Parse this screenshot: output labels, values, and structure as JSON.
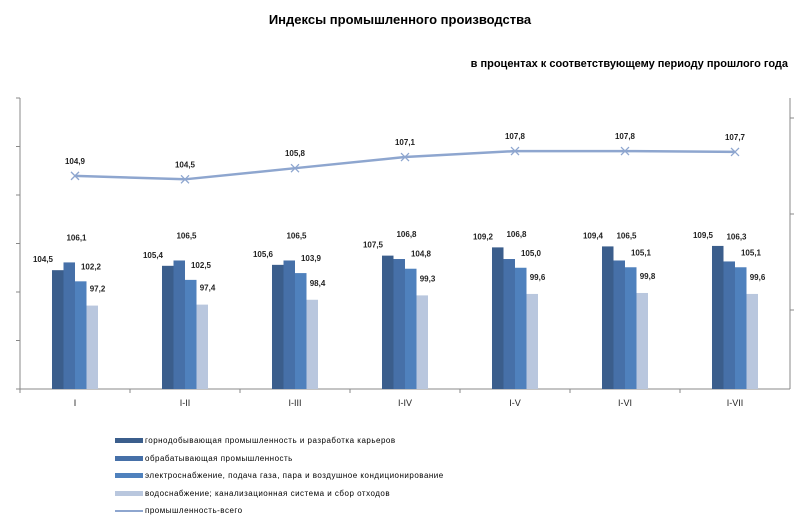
{
  "chart_data": {
    "type": "bar",
    "title": "Индексы промышленного производства",
    "subtitle": "в процентах к соответствующему периоду прошлого года",
    "categories": [
      "I",
      "I-II",
      "I-III",
      "I-IV",
      "I-V",
      "I-VI",
      "I-VII"
    ],
    "ylim": [
      80,
      140
    ],
    "ylim_secondary": [
      80,
      114
    ],
    "series": [
      {
        "name": "горнодобывающая промышленность и разработка карьеров",
        "color": "#3b5e8c",
        "values": [
          104.5,
          105.4,
          105.6,
          107.5,
          109.2,
          109.4,
          109.5
        ],
        "labels": [
          "104,5",
          "105,4",
          "105,6",
          "107,5",
          "109,2",
          "109,4",
          "109,5"
        ]
      },
      {
        "name": "обрабатывающая промышленность",
        "color": "#4670a8",
        "values": [
          106.1,
          106.5,
          106.5,
          106.8,
          106.8,
          106.5,
          106.3
        ],
        "labels": [
          "106,1",
          "106,5",
          "106,5",
          "106,8",
          "106,8",
          "106,5",
          "106,3"
        ]
      },
      {
        "name": "электроснабжение, подача газа, пара и воздушное кондиционирование",
        "color": "#4f81bd",
        "values": [
          102.2,
          102.5,
          103.9,
          104.8,
          105.0,
          105.1,
          105.1
        ],
        "labels": [
          "102,2",
          "102,5",
          "103,9",
          "104,8",
          "105,0",
          "105,1",
          "105,1"
        ]
      },
      {
        "name": "водоснабжение; канализационная система и сбор отходов",
        "color": "#b9c7de",
        "values": [
          97.2,
          97.4,
          98.4,
          99.3,
          99.6,
          99.8,
          99.6
        ],
        "labels": [
          "97,2",
          "97,4",
          "98,4",
          "99,3",
          "99,6",
          "99,8",
          "99,6"
        ]
      }
    ],
    "line": {
      "name": "промышленность-всего",
      "color": "#8ea6cf",
      "values": [
        104.9,
        104.5,
        105.8,
        107.1,
        107.8,
        107.8,
        107.7
      ],
      "labels": [
        "104,9",
        "104,5",
        "105,8",
        "107,1",
        "107,8",
        "107,8",
        "107,7"
      ]
    }
  }
}
